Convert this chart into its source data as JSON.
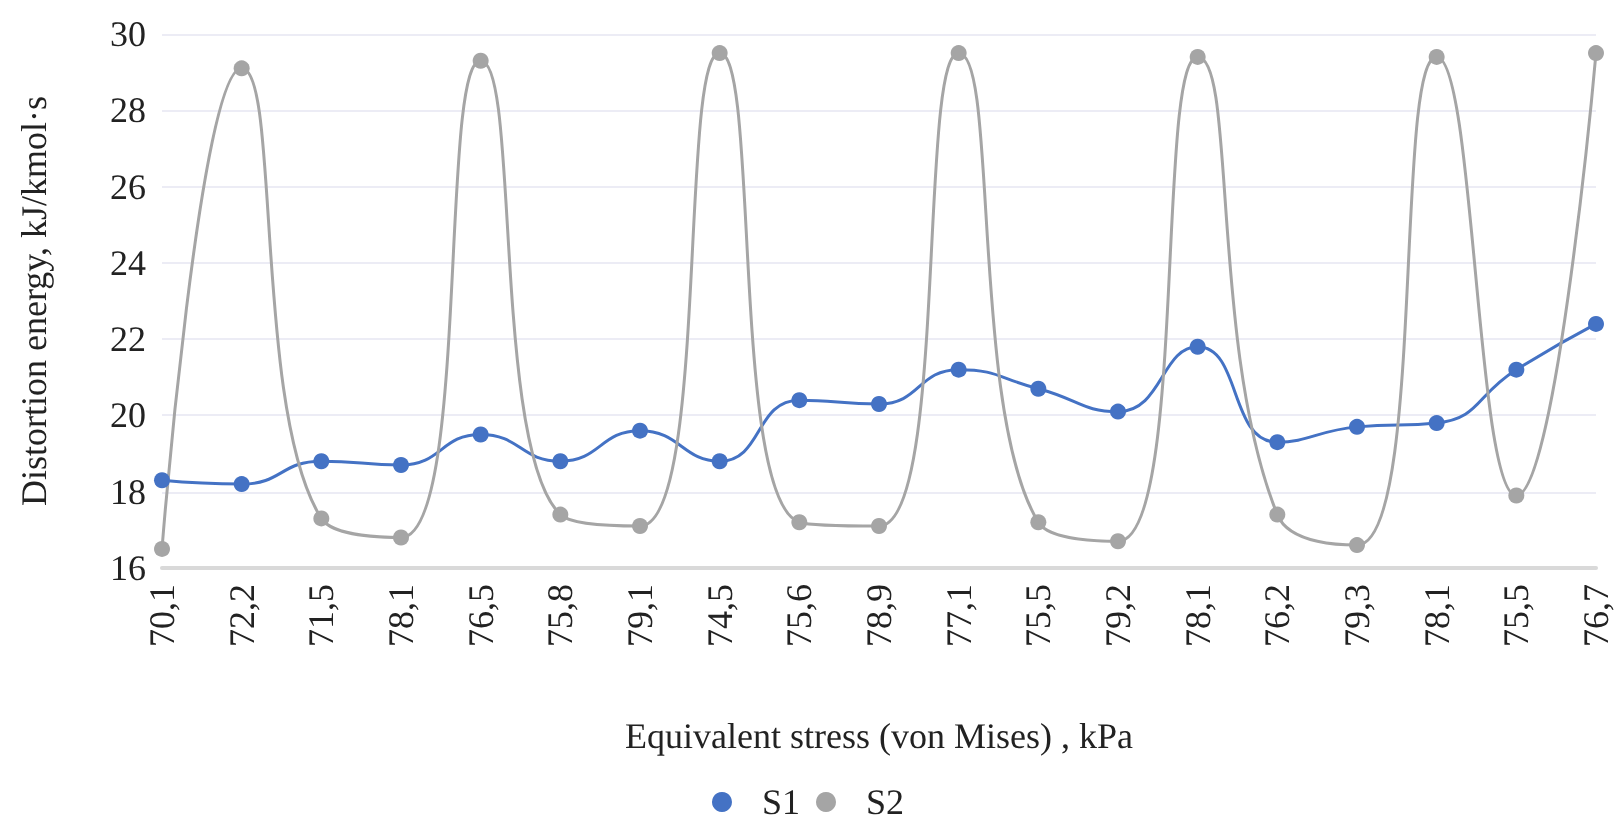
{
  "chart_data": {
    "type": "line",
    "xlabel": "Equivalent stress (von Mises) , kPa",
    "ylabel": "Distortion energy, kJ/kmol·s",
    "categories": [
      "70,1",
      "72,2",
      "71,5",
      "78,1",
      "76,5",
      "75,8",
      "79,1",
      "74,5",
      "75,6",
      "78,9",
      "77,1",
      "75,5",
      "79,2",
      "78,1",
      "76,2",
      "79,3",
      "78,1",
      "75,5",
      "76,7"
    ],
    "series": [
      {
        "name": "S1",
        "color": "#4472c4",
        "values": [
          18.3,
          18.2,
          18.8,
          18.7,
          19.5,
          18.8,
          19.6,
          18.8,
          20.4,
          20.3,
          21.2,
          20.7,
          20.1,
          21.8,
          19.3,
          19.7,
          19.8,
          21.2,
          22.4
        ]
      },
      {
        "name": "S2",
        "color": "#a5a5a5",
        "values": [
          16.5,
          29.1,
          17.3,
          16.8,
          29.3,
          17.4,
          17.1,
          29.5,
          17.2,
          17.1,
          29.5,
          17.2,
          16.7,
          29.4,
          17.4,
          16.6,
          29.4,
          17.9,
          29.5
        ]
      }
    ],
    "ylim": [
      16,
      30
    ],
    "yticks": [
      16,
      18,
      20,
      22,
      24,
      26,
      28,
      30
    ],
    "grid": "y",
    "legend": "bottom",
    "marker": "circle",
    "line_style": "solid"
  }
}
